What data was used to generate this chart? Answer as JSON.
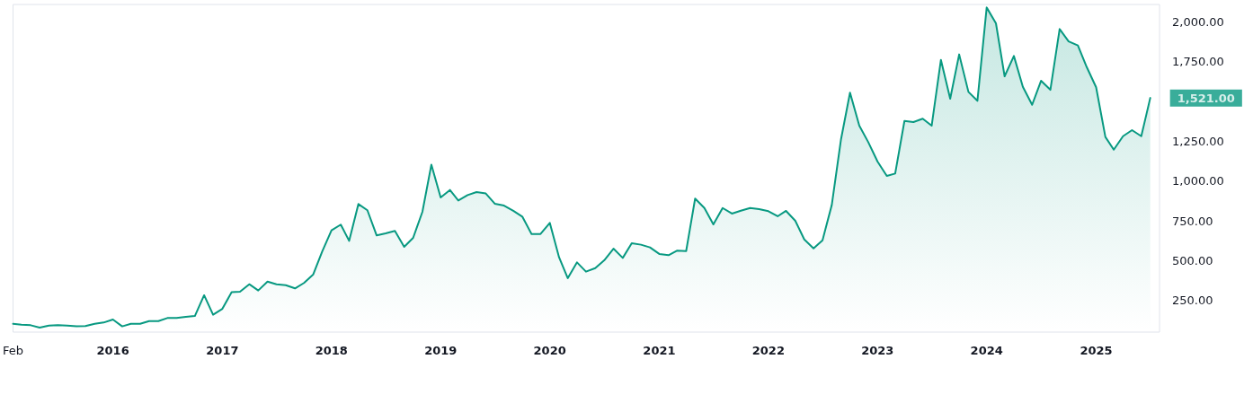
{
  "chart_data": {
    "type": "area",
    "x": [
      "2015-02",
      "2015-03",
      "2015-04",
      "2015-05",
      "2015-06",
      "2015-07",
      "2015-08",
      "2015-09",
      "2015-10",
      "2015-11",
      "2015-12",
      "2016-01",
      "2016-02",
      "2016-03",
      "2016-04",
      "2016-05",
      "2016-06",
      "2016-07",
      "2016-08",
      "2016-09",
      "2016-10",
      "2016-11",
      "2016-12",
      "2017-01",
      "2017-02",
      "2017-03",
      "2017-04",
      "2017-05",
      "2017-06",
      "2017-07",
      "2017-08",
      "2017-09",
      "2017-10",
      "2017-11",
      "2017-12",
      "2018-01",
      "2018-02",
      "2018-03",
      "2018-04",
      "2018-05",
      "2018-06",
      "2018-07",
      "2018-08",
      "2018-09",
      "2018-10",
      "2018-11",
      "2018-12",
      "2019-01",
      "2019-02",
      "2019-03",
      "2019-04",
      "2019-05",
      "2019-06",
      "2019-07",
      "2019-08",
      "2019-09",
      "2019-10",
      "2019-11",
      "2019-12",
      "2020-01",
      "2020-02",
      "2020-03",
      "2020-04",
      "2020-05",
      "2020-06",
      "2020-07",
      "2020-08",
      "2020-09",
      "2020-10",
      "2020-11",
      "2020-12",
      "2021-01",
      "2021-02",
      "2021-03",
      "2021-04",
      "2021-05",
      "2021-06",
      "2021-07",
      "2021-08",
      "2021-09",
      "2021-10",
      "2021-11",
      "2021-12",
      "2022-01",
      "2022-02",
      "2022-03",
      "2022-04",
      "2022-05",
      "2022-06",
      "2022-07",
      "2022-08",
      "2022-09",
      "2022-10",
      "2022-11",
      "2022-12",
      "2023-01",
      "2023-02",
      "2023-03",
      "2023-04",
      "2023-05",
      "2023-06",
      "2023-07",
      "2023-08",
      "2023-09",
      "2023-10",
      "2023-11",
      "2023-12",
      "2024-01",
      "2024-02",
      "2024-03",
      "2024-04",
      "2024-05",
      "2024-06",
      "2024-07",
      "2024-08",
      "2024-09",
      "2024-10",
      "2024-11",
      "2024-12",
      "2025-01",
      "2025-02",
      "2025-03",
      "2025-04",
      "2025-05",
      "2025-06",
      "2025-07"
    ],
    "series": [
      {
        "color": "#089981",
        "values": [
          105,
          100,
          96,
          81,
          94,
          96,
          94,
          89,
          91,
          105,
          113,
          132,
          89,
          105,
          105,
          122,
          122,
          141,
          141,
          149,
          154,
          284,
          162,
          199,
          303,
          306,
          353,
          314,
          370,
          353,
          347,
          327,
          361,
          415,
          559,
          691,
          727,
          625,
          856,
          817,
          659,
          672,
          687,
          588,
          644,
          807,
          1103,
          897,
          944,
          878,
          912,
          931,
          922,
          858,
          846,
          813,
          777,
          668,
          668,
          738,
          522,
          391,
          490,
          432,
          454,
          503,
          576,
          518,
          610,
          601,
          584,
          543,
          535,
          563,
          561,
          890,
          831,
          728,
          831,
          796,
          814,
          831,
          824,
          811,
          779,
          813,
          751,
          634,
          578,
          629,
          850,
          1263,
          1554,
          1347,
          1244,
          1122,
          1032,
          1047,
          1377,
          1370,
          1391,
          1347,
          1760,
          1516,
          1794,
          1559,
          1503,
          2088,
          1989,
          1657,
          1784,
          1591,
          1478,
          1629,
          1572,
          1953,
          1876,
          1850,
          1713,
          1588,
          1276,
          1197,
          1281,
          1319,
          1281,
          1521
        ]
      }
    ],
    "xlim": [
      "2015-02",
      "2025-08"
    ],
    "xticks": [
      {
        "value": "2015-02",
        "label": "Feb"
      },
      {
        "value": "2016-01",
        "label": "2016"
      },
      {
        "value": "2017-01",
        "label": "2017"
      },
      {
        "value": "2018-01",
        "label": "2018"
      },
      {
        "value": "2019-01",
        "label": "2019"
      },
      {
        "value": "2020-01",
        "label": "2020"
      },
      {
        "value": "2021-01",
        "label": "2021"
      },
      {
        "value": "2022-01",
        "label": "2022"
      },
      {
        "value": "2023-01",
        "label": "2023"
      },
      {
        "value": "2024-01",
        "label": "2024"
      },
      {
        "value": "2025-01",
        "label": "2025"
      }
    ],
    "ylim": [
      53,
      2107
    ],
    "yticks": [
      {
        "value": 250,
        "label": "250.00"
      },
      {
        "value": 500,
        "label": "500.00"
      },
      {
        "value": 750,
        "label": "750.00"
      },
      {
        "value": 1000,
        "label": "1,000.00"
      },
      {
        "value": 1250,
        "label": "1,250.00"
      },
      {
        "value": 1750,
        "label": "1,750.00"
      },
      {
        "value": 2000,
        "label": "2,000.00"
      }
    ],
    "annotations": [
      {
        "text": "1,521.00",
        "x": "2025-07",
        "y": 1521
      }
    ],
    "grid": false,
    "marker": "none",
    "line_style": "solid"
  }
}
